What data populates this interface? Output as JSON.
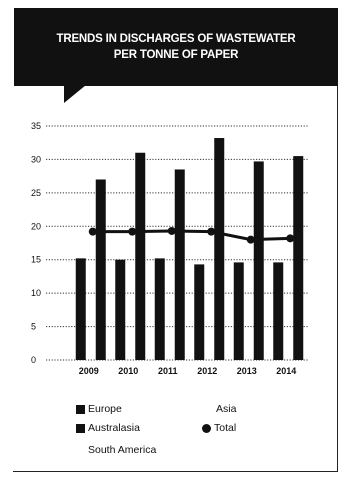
{
  "title_lines": [
    "TRENDS IN DISCHARGES OF WASTEWATER",
    "PER TONNE OF PAPER"
  ],
  "chart_data": {
    "type": "bar",
    "title": "TRENDS IN DISCHARGES OF WASTEWATER PER TONNE OF PAPER",
    "categories": [
      "2009",
      "2010",
      "2011",
      "2012",
      "2013",
      "2014"
    ],
    "series": [
      {
        "name": "Europe",
        "type": "bar",
        "values": [
          15.2,
          15.0,
          15.2,
          14.3,
          14.6,
          14.6
        ]
      },
      {
        "name": "Australasia",
        "type": "bar",
        "values": [
          27.0,
          31.0,
          28.5,
          33.2,
          29.7,
          30.5
        ]
      },
      {
        "name": "Total",
        "type": "line",
        "values": [
          19.2,
          19.2,
          19.3,
          19.2,
          18.0,
          18.2
        ]
      }
    ],
    "ylim": [
      0,
      35
    ],
    "yticks": [
      0,
      5,
      10,
      15,
      20,
      25,
      30,
      35
    ],
    "xlabel": "",
    "ylabel": "",
    "grid": "dotted-horizontal",
    "legend": {
      "position": "bottom",
      "items": [
        {
          "label": "Europe",
          "marker": "square"
        },
        {
          "label": "Asia",
          "marker": "none"
        },
        {
          "label": "Australasia",
          "marker": "square"
        },
        {
          "label": "Total",
          "marker": "circle"
        },
        {
          "label": "South America",
          "marker": "none"
        }
      ]
    },
    "colors": {
      "bars": "#111111",
      "line": "#111111",
      "grid": "#333333"
    }
  }
}
